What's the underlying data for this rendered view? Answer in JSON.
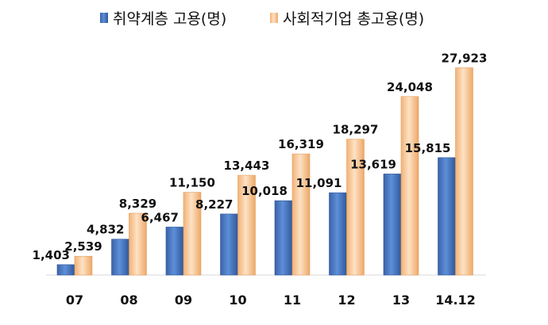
{
  "chart_data": {
    "type": "bar",
    "categories": [
      "07",
      "08",
      "09",
      "10",
      "11",
      "12",
      "13",
      "14.12"
    ],
    "series": [
      {
        "name": "취약계층 고용(명)",
        "color": "#4a7ac5",
        "values": [
          1403,
          4832,
          6467,
          8227,
          10018,
          11091,
          13619,
          15815
        ],
        "labels": [
          "1,403",
          "4,832",
          "6,467",
          "8,227",
          "10,018",
          "11,091",
          "13,619",
          "15,815"
        ]
      },
      {
        "name": "사회적기업 총고용(명)",
        "color": "#f6c28c",
        "values": [
          2539,
          8329,
          11150,
          13443,
          16319,
          18297,
          24048,
          27923
        ],
        "labels": [
          "2,539",
          "8,329",
          "11,150",
          "13,443",
          "16,319",
          "18,297",
          "24,048",
          "27,923"
        ]
      }
    ],
    "ylim": [
      0,
      30000
    ],
    "grid": false,
    "legend": "top"
  }
}
